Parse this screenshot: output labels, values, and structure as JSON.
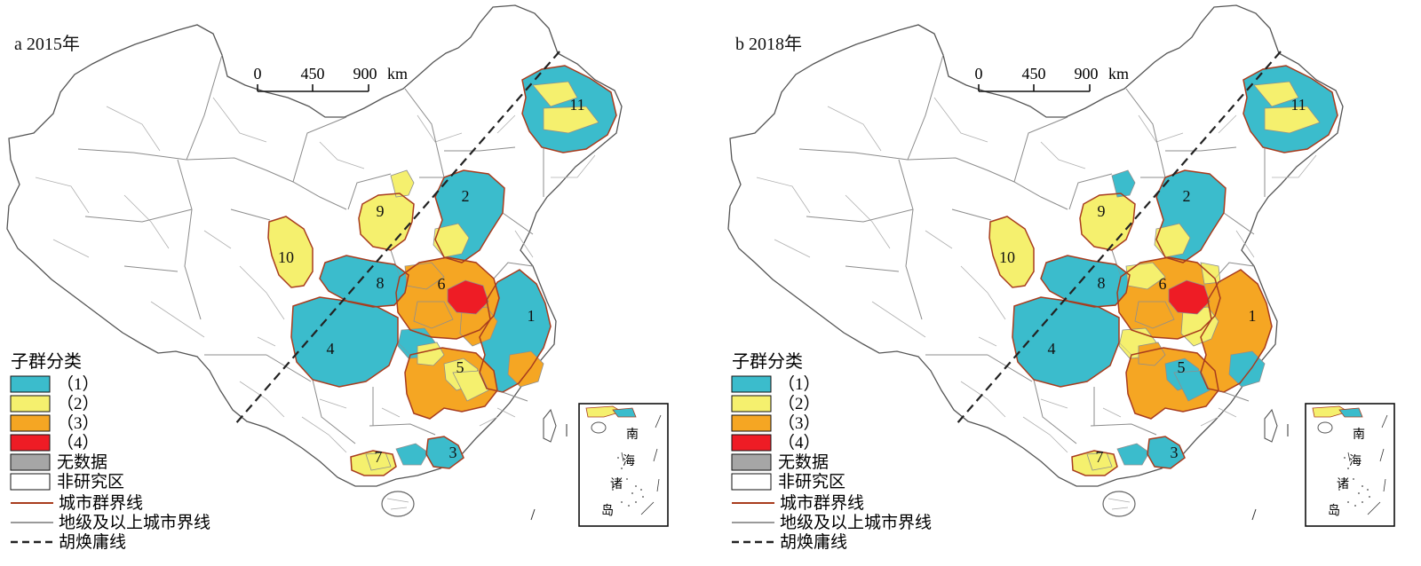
{
  "panels": [
    {
      "label": "a 2015年",
      "colors": {
        "uc1": "#3bbccc",
        "uc2": "#f5f06e",
        "uc3": "#f5a623",
        "uc4": "#ee1c25"
      }
    },
    {
      "label": "b 2018年",
      "colors": {
        "uc1": "#3bbccc",
        "uc2": "#f5f06e",
        "uc3": "#f5a623",
        "uc4": "#ee1c25"
      }
    }
  ],
  "scale_bar": {
    "ticks": [
      "0",
      "450",
      "900"
    ],
    "unit": "km"
  },
  "clusters": [
    "1",
    "2",
    "3",
    "4",
    "5",
    "6",
    "7",
    "8",
    "9",
    "10",
    "11"
  ],
  "legend": {
    "title": "子群分类",
    "items": [
      {
        "label": "（1）",
        "color": "#3bbccc"
      },
      {
        "label": "（2）",
        "color": "#f5f06e"
      },
      {
        "label": "（3）",
        "color": "#f5a623"
      },
      {
        "label": "（4）",
        "color": "#ee1c25"
      },
      {
        "label": "无数据",
        "color": "#a6a6a6"
      },
      {
        "label": "非研究区",
        "color": "#ffffff"
      }
    ],
    "lines": [
      {
        "label": "城市群界线",
        "color": "#a83c1e"
      },
      {
        "label": "地级及以上城市界线",
        "color": "#9a9a9a"
      },
      {
        "label": "胡焕庸线",
        "color": "#222222"
      }
    ]
  },
  "inset": {
    "chars": [
      "南",
      "海",
      "诸",
      "岛"
    ]
  }
}
